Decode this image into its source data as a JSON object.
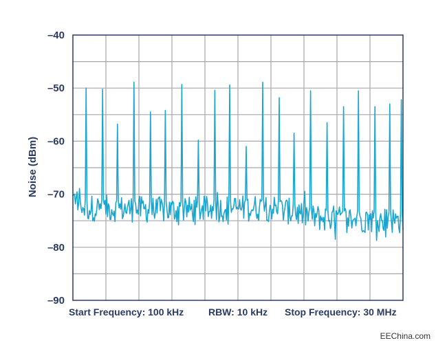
{
  "chart_data": {
    "type": "line",
    "ylabel": "Noise (dBm)",
    "ylim": [
      -90,
      -40
    ],
    "yticks": [
      -40,
      -50,
      -60,
      -70,
      -80,
      -90
    ],
    "ytick_labels": [
      "–40",
      "–50",
      "–60",
      "–70",
      "–80",
      "–90"
    ],
    "x_divisions": 10,
    "grid": true,
    "footer": {
      "start": "Start Frequency: 100 kHz",
      "rbw": "RBW: 10 kHz",
      "stop": "Stop Frequency: 30 MHz"
    },
    "series": [
      {
        "color": "#1aa6cf",
        "noise_floor": [
          [
            0,
            -72.5
          ],
          [
            3,
            -73
          ],
          [
            6,
            -72.5
          ],
          [
            7.5,
            -74.5
          ],
          [
            10,
            -75
          ]
        ],
        "spikes": [
          {
            "x": 0.4,
            "y": -50.0
          },
          {
            "x": 0.9,
            "y": -50.2
          },
          {
            "x": 1.35,
            "y": -56.8
          },
          {
            "x": 1.85,
            "y": -48.9
          },
          {
            "x": 2.35,
            "y": -54.5
          },
          {
            "x": 2.8,
            "y": -54.2
          },
          {
            "x": 3.3,
            "y": -49.3
          },
          {
            "x": 3.8,
            "y": -59.8
          },
          {
            "x": 4.3,
            "y": -50.4
          },
          {
            "x": 4.75,
            "y": -49.4
          },
          {
            "x": 5.25,
            "y": -61.0
          },
          {
            "x": 5.75,
            "y": -48.9
          },
          {
            "x": 6.25,
            "y": -51.8
          },
          {
            "x": 6.7,
            "y": -58.5
          },
          {
            "x": 7.2,
            "y": -50.5
          },
          {
            "x": 7.7,
            "y": -56.5
          },
          {
            "x": 8.2,
            "y": -53.5
          },
          {
            "x": 8.65,
            "y": -50.5
          },
          {
            "x": 9.15,
            "y": -53.5
          },
          {
            "x": 9.6,
            "y": -53.0
          },
          {
            "x": 9.95,
            "y": -52.2
          }
        ]
      }
    ]
  },
  "watermark": "EEChina.com"
}
